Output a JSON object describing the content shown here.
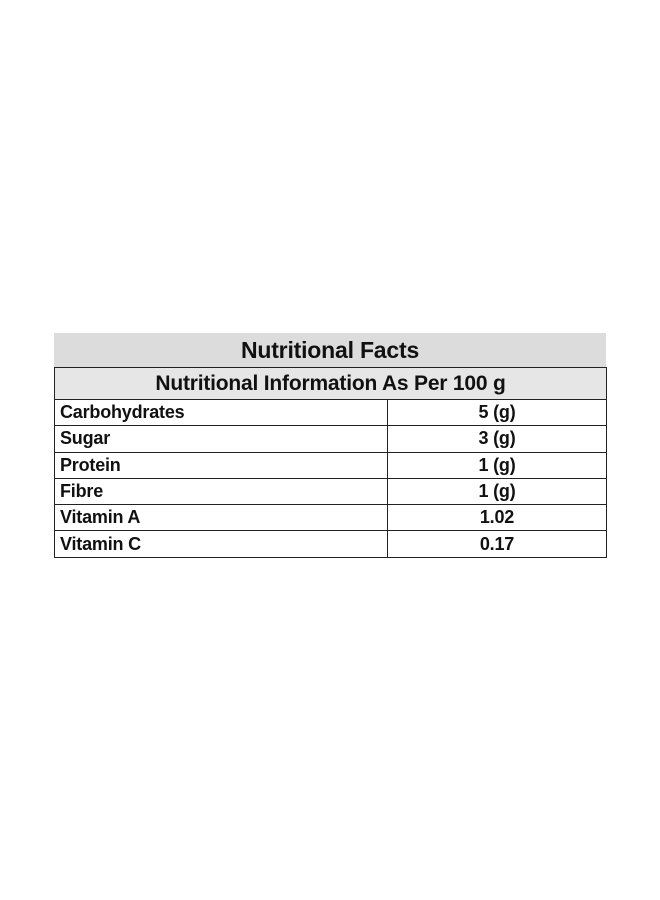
{
  "title": "Nutritional Facts",
  "subtitle": "Nutritional Information As Per 100 g",
  "rows": [
    {
      "nutrient": "Carbohydrates",
      "amount": "5 (g)"
    },
    {
      "nutrient": "Sugar",
      "amount": "3 (g)"
    },
    {
      "nutrient": "Protein",
      "amount": "1 (g)"
    },
    {
      "nutrient": "Fibre",
      "amount": "1 (g)"
    },
    {
      "nutrient": "Vitamin A",
      "amount": "1.02"
    },
    {
      "nutrient": "Vitamin C",
      "amount": "0.17"
    }
  ],
  "colors": {
    "title_background": "#dcdcdc",
    "header_background": "#e6e6e6",
    "border": "#222222"
  }
}
